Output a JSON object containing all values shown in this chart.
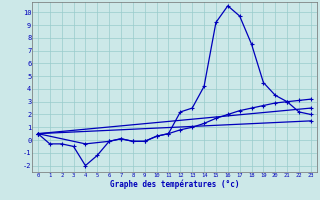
{
  "xlabel": "Graphe des températures (°c)",
  "xlim": [
    -0.5,
    23.5
  ],
  "ylim": [
    -2.5,
    10.8
  ],
  "yticks": [
    -2,
    -1,
    0,
    1,
    2,
    3,
    4,
    5,
    6,
    7,
    8,
    9,
    10
  ],
  "xticks": [
    0,
    1,
    2,
    3,
    4,
    5,
    6,
    7,
    8,
    9,
    10,
    11,
    12,
    13,
    14,
    15,
    16,
    17,
    18,
    19,
    20,
    21,
    22,
    23
  ],
  "background_color": "#cce8e8",
  "line_color": "#0000bb",
  "grid_color": "#99cccc",
  "main_x": [
    0,
    1,
    2,
    3,
    4,
    5,
    6,
    7,
    8,
    9,
    10,
    11,
    12,
    13,
    14,
    15,
    16,
    17,
    18,
    19,
    20,
    21,
    22,
    23
  ],
  "main_y": [
    0.5,
    -0.3,
    -0.3,
    -0.5,
    -2.0,
    -1.2,
    -0.1,
    0.1,
    -0.1,
    -0.1,
    0.3,
    0.5,
    2.2,
    2.5,
    4.2,
    9.2,
    10.5,
    9.7,
    7.5,
    4.5,
    3.5,
    3.0,
    2.2,
    2.0
  ],
  "extra_lines": [
    {
      "x": [
        0,
        4,
        6,
        7,
        8,
        9,
        10,
        11,
        12,
        13,
        14,
        15,
        16,
        17,
        18,
        19,
        20,
        21,
        22,
        23
      ],
      "y": [
        0.5,
        -0.3,
        -0.1,
        0.1,
        -0.1,
        -0.1,
        0.3,
        0.5,
        0.8,
        1.0,
        1.3,
        1.7,
        2.0,
        2.3,
        2.5,
        2.7,
        2.9,
        3.0,
        3.1,
        3.2
      ]
    },
    {
      "x": [
        0,
        23
      ],
      "y": [
        0.5,
        2.5
      ]
    },
    {
      "x": [
        0,
        23
      ],
      "y": [
        0.5,
        1.5
      ]
    }
  ]
}
